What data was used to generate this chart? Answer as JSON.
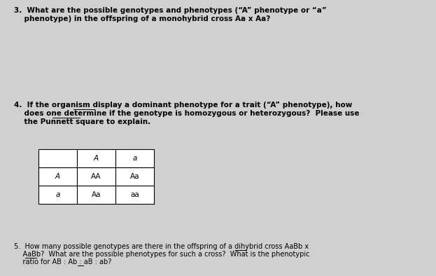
{
  "bg_color": "#d0d0d0",
  "text_color": "#000000",
  "q3_lines": [
    "3.  What are the possible genotypes and phenotypes (“A” phenotype or “a”",
    "    phenotype) in the offspring of a monohybrid cross Aa x Aa?"
  ],
  "q4_lines": [
    "4.  If the organism display a dominant phenotype for a trait (“A” phenotype), how",
    "    does one determine if the genotype is homozygous or heterozygous?  Please use",
    "    the Punnett square to explain."
  ],
  "q5_lines": [
    "5.  How many possible genotypes are there in the offspring of a dihybrid cross AaBb x",
    "    AaBb?  What are the possible phenotypes for such a cross?  What is the phenotypic",
    "    ratio for AB : Ab : aB : ab?"
  ],
  "q3_fontsize": 7.5,
  "q4_fontsize": 7.5,
  "q5_fontsize": 7.0,
  "table_data": [
    [
      "",
      "A",
      "a"
    ],
    [
      "A",
      "AA",
      "Aa"
    ],
    [
      "a",
      "Aa",
      "aa"
    ]
  ],
  "table_italic_cells": [
    "A",
    "a"
  ],
  "table_normal_cells": [
    "AA",
    "Aa",
    "aa",
    ""
  ],
  "table_fontsize": 7.5
}
